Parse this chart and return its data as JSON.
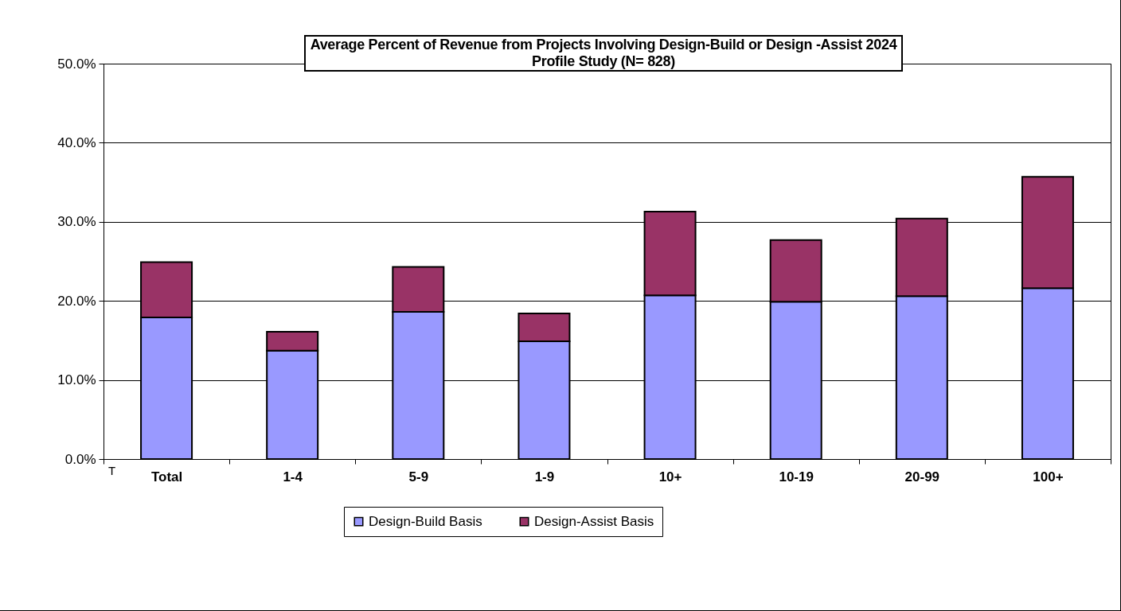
{
  "chart_data": {
    "type": "bar",
    "title": "Average Percent of Revenue from Projects Involving Design-Build or Design -Assist 2024 Profile Study (N= 828)",
    "categories": [
      "Total",
      "1-4",
      "5-9",
      "1-9",
      "10+",
      "10-19",
      "20-99",
      "100+"
    ],
    "stacked": true,
    "series": [
      {
        "name": "Design-Build Basis",
        "color": "#9999ff",
        "values": [
          17.9,
          13.7,
          18.6,
          14.9,
          20.7,
          19.9,
          20.6,
          21.6
        ]
      },
      {
        "name": "Design-Assist Basis",
        "color": "#993366",
        "values": [
          7.0,
          2.4,
          5.7,
          3.5,
          10.6,
          7.8,
          9.8,
          14.1
        ]
      }
    ],
    "ylim": [
      0,
      50
    ],
    "yticks": [
      {
        "value": 0,
        "label": "0.0%"
      },
      {
        "value": 10,
        "label": "10.0%"
      },
      {
        "value": 20,
        "label": "20.0%"
      },
      {
        "value": 30,
        "label": "30.0%"
      },
      {
        "value": 40,
        "label": "40.0%"
      },
      {
        "value": 50,
        "label": "50.0%"
      }
    ],
    "grid": "y",
    "legend": "bottom",
    "annotations": [
      "T"
    ]
  }
}
